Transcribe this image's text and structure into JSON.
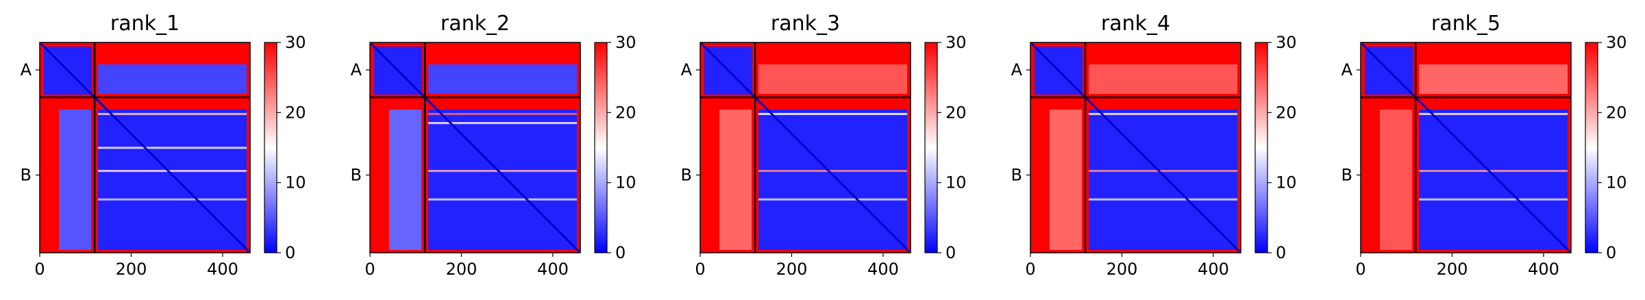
{
  "figure": {
    "background": "#ffffff",
    "colormap": {
      "name": "bwr",
      "low": "#0000ff",
      "mid": "#ffffff",
      "high": "#ff0000"
    }
  },
  "chart_data": [
    {
      "type": "heatmap",
      "title": "rank_1",
      "x_range": [
        0,
        460
      ],
      "y_range": [
        0,
        460
      ],
      "x_ticks": [
        "0",
        "200",
        "400"
      ],
      "y_labels": [
        "A",
        "B"
      ],
      "chain_boundary": 120,
      "colorbar": {
        "min": 0,
        "max": 30,
        "ticks": [
          "0",
          "10",
          "20",
          "30"
        ]
      },
      "inter_chain_error": {
        "A_to_B": 4,
        "B_to_A": 5
      },
      "b_block_stripes": [
        {
          "pos": 8,
          "value": 18
        },
        {
          "pos": 90,
          "value": 14
        },
        {
          "pos": 146,
          "value": 17
        },
        {
          "pos": 215,
          "value": 12
        }
      ]
    },
    {
      "type": "heatmap",
      "title": "rank_2",
      "x_range": [
        0,
        460
      ],
      "y_range": [
        0,
        460
      ],
      "x_ticks": [
        "0",
        "200",
        "400"
      ],
      "y_labels": [
        "A",
        "B"
      ],
      "chain_boundary": 120,
      "colorbar": {
        "min": 0,
        "max": 30,
        "ticks": [
          "0",
          "10",
          "20",
          "30"
        ]
      },
      "inter_chain_error": {
        "A_to_B": 4,
        "B_to_A": 6
      },
      "b_block_stripes": [
        {
          "pos": 8,
          "value": 24
        },
        {
          "pos": 30,
          "value": 16
        },
        {
          "pos": 146,
          "value": 20
        },
        {
          "pos": 215,
          "value": 13
        }
      ]
    },
    {
      "type": "heatmap",
      "title": "rank_3",
      "x_range": [
        0,
        460
      ],
      "y_range": [
        0,
        460
      ],
      "x_ticks": [
        "0",
        "200",
        "400"
      ],
      "y_labels": [
        "A",
        "B"
      ],
      "chain_boundary": 120,
      "colorbar": {
        "min": 0,
        "max": 30,
        "ticks": [
          "0",
          "10",
          "20",
          "30"
        ]
      },
      "inter_chain_error": {
        "A_to_B": 25,
        "B_to_A": 24
      },
      "b_block_stripes": [
        {
          "pos": 8,
          "value": 15
        },
        {
          "pos": 146,
          "value": 22
        },
        {
          "pos": 215,
          "value": 13
        }
      ]
    },
    {
      "type": "heatmap",
      "title": "rank_4",
      "x_range": [
        0,
        460
      ],
      "y_range": [
        0,
        460
      ],
      "x_ticks": [
        "0",
        "200",
        "400"
      ],
      "y_labels": [
        "A",
        "B"
      ],
      "chain_boundary": 120,
      "colorbar": {
        "min": 0,
        "max": 30,
        "ticks": [
          "0",
          "10",
          "20",
          "30"
        ]
      },
      "inter_chain_error": {
        "A_to_B": 25,
        "B_to_A": 24
      },
      "b_block_stripes": [
        {
          "pos": 8,
          "value": 16
        },
        {
          "pos": 146,
          "value": 22
        },
        {
          "pos": 215,
          "value": 13
        }
      ]
    },
    {
      "type": "heatmap",
      "title": "rank_5",
      "x_range": [
        0,
        460
      ],
      "y_range": [
        0,
        460
      ],
      "x_ticks": [
        "0",
        "200",
        "400"
      ],
      "y_labels": [
        "A",
        "B"
      ],
      "chain_boundary": 120,
      "colorbar": {
        "min": 0,
        "max": 30,
        "ticks": [
          "0",
          "10",
          "20",
          "30"
        ]
      },
      "inter_chain_error": {
        "A_to_B": 24,
        "B_to_A": 25
      },
      "b_block_stripes": [
        {
          "pos": 8,
          "value": 16
        },
        {
          "pos": 146,
          "value": 21
        },
        {
          "pos": 215,
          "value": 13
        }
      ]
    }
  ]
}
